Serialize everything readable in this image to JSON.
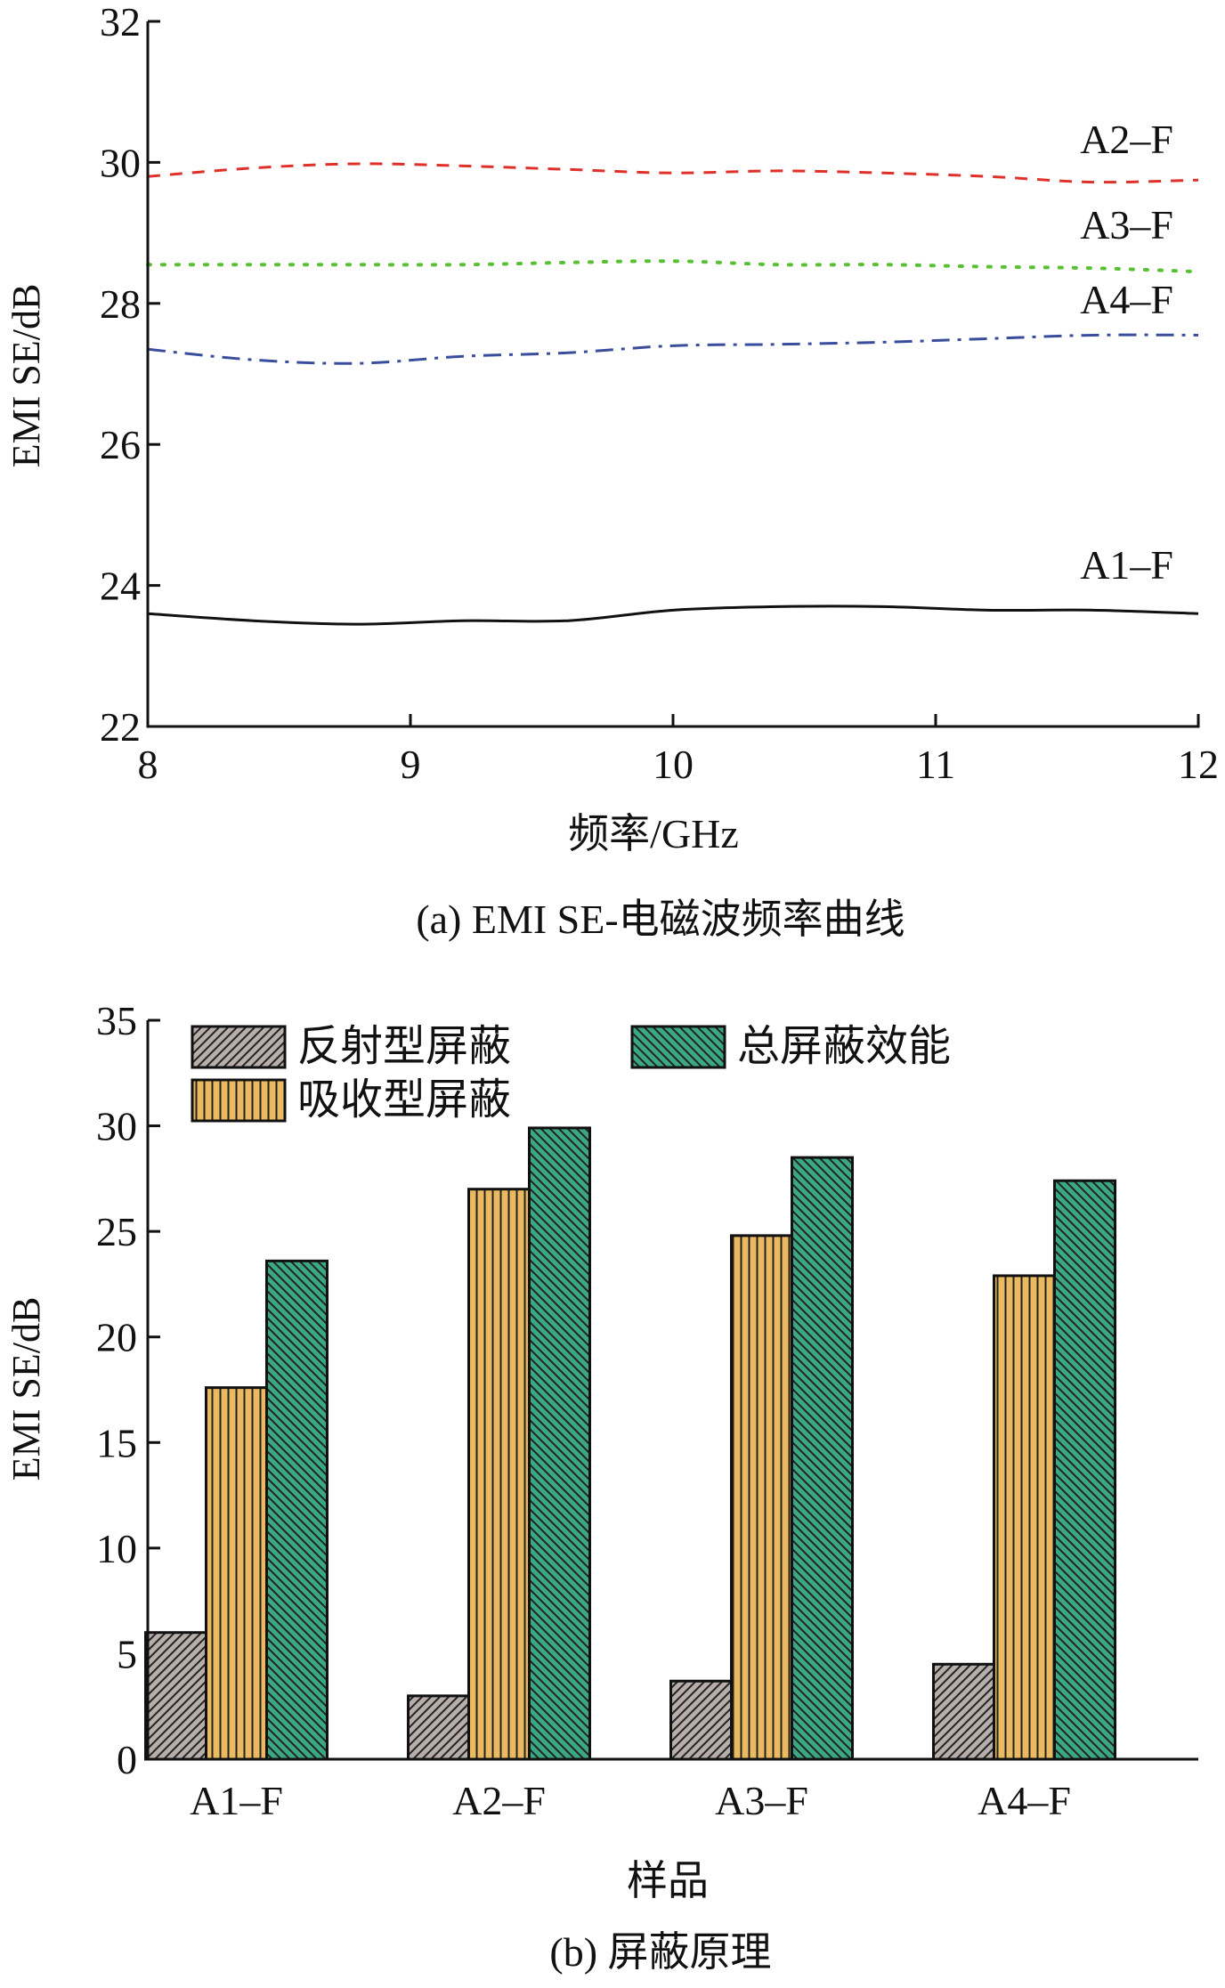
{
  "chart_data": [
    {
      "type": "line",
      "caption": "(a) EMI SE-电磁波频率曲线",
      "xlabel": "频率/GHz",
      "ylabel": "EMI SE/dB",
      "xlim": [
        8,
        12
      ],
      "ylim": [
        22,
        32
      ],
      "xticks": [
        8,
        9,
        10,
        11,
        12
      ],
      "yticks": [
        22,
        24,
        26,
        28,
        30,
        32
      ],
      "grid": false,
      "series": [
        {
          "name": "A1–F",
          "color": "#111111",
          "style": "solid",
          "x": [
            8.0,
            8.4,
            8.8,
            9.2,
            9.6,
            10.0,
            10.4,
            10.8,
            11.2,
            11.6,
            12.0
          ],
          "y": [
            23.6,
            23.5,
            23.45,
            23.5,
            23.5,
            23.65,
            23.7,
            23.7,
            23.65,
            23.65,
            23.6
          ]
        },
        {
          "name": "A2–F",
          "color": "#e0302a",
          "style": "dashed",
          "x": [
            8.0,
            8.4,
            8.8,
            9.2,
            9.6,
            10.0,
            10.4,
            10.8,
            11.2,
            11.6,
            12.0
          ],
          "y": [
            29.8,
            29.92,
            29.98,
            29.95,
            29.9,
            29.85,
            29.88,
            29.85,
            29.8,
            29.72,
            29.75
          ]
        },
        {
          "name": "A3–F",
          "color": "#58c035",
          "style": "dotted",
          "x": [
            8.0,
            8.4,
            8.8,
            9.2,
            9.6,
            10.0,
            10.4,
            10.8,
            11.2,
            11.6,
            12.0
          ],
          "y": [
            28.55,
            28.55,
            28.55,
            28.55,
            28.58,
            28.6,
            28.55,
            28.55,
            28.52,
            28.5,
            28.45
          ]
        },
        {
          "name": "A4–F",
          "color": "#3a4d9c",
          "style": "dashdot",
          "x": [
            8.0,
            8.4,
            8.8,
            9.2,
            9.6,
            10.0,
            10.4,
            10.8,
            11.2,
            11.6,
            12.0
          ],
          "y": [
            27.35,
            27.2,
            27.15,
            27.25,
            27.3,
            27.4,
            27.42,
            27.45,
            27.5,
            27.55,
            27.55
          ]
        }
      ]
    },
    {
      "type": "bar",
      "caption": "(b) 屏蔽原理",
      "xlabel": "样品",
      "ylabel": "EMI SE/dB",
      "ylim": [
        0,
        35
      ],
      "yticks": [
        0,
        5,
        10,
        15,
        20,
        25,
        30,
        35
      ],
      "grid": false,
      "legend_position": "top-left",
      "categories": [
        "A1–F",
        "A2–F",
        "A3–F",
        "A4–F"
      ],
      "series": [
        {
          "name": "反射型屏蔽",
          "color": "#b7aeaa",
          "pattern": "diagonal-up",
          "values": [
            6.0,
            3.0,
            3.7,
            4.5
          ]
        },
        {
          "name": "吸收型屏蔽",
          "color": "#eab960",
          "pattern": "vertical",
          "values": [
            17.6,
            27.0,
            24.8,
            22.9
          ]
        },
        {
          "name": "总屏蔽效能",
          "color": "#3aa882",
          "pattern": "diagonal-down",
          "values": [
            23.6,
            29.9,
            28.5,
            27.4
          ]
        }
      ],
      "legend_layout": [
        [
          "反射型屏蔽",
          "总屏蔽效能"
        ],
        [
          "吸收型屏蔽"
        ]
      ]
    }
  ]
}
